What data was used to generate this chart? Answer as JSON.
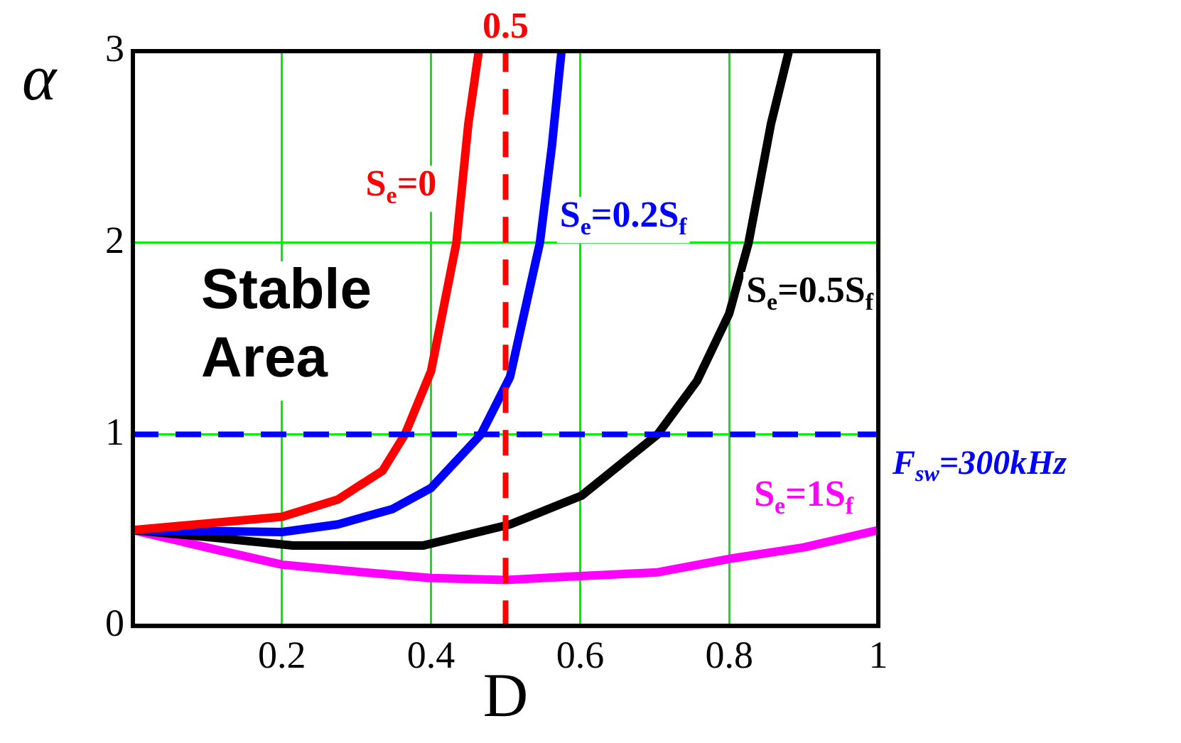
{
  "chart_data": {
    "type": "line",
    "xlabel": "D",
    "ylabel": "α",
    "xlim": [
      0,
      1
    ],
    "xticks": [
      {
        "value": 0,
        "label": null
      },
      0.2,
      0.4,
      0.6,
      0.8,
      1
    ],
    "ylim": [
      0,
      3
    ],
    "yticks": [
      0,
      1,
      2,
      3
    ],
    "grid": true,
    "legend": false,
    "marker": "none",
    "line_style": "solid",
    "series": [
      {
        "name": "S$_{e}$=0",
        "color": "#ff0000",
        "x": [
          0,
          0.2,
          0.275,
          0.335,
          0.365,
          0.4,
          0.434,
          0.45,
          0.464
        ],
        "values": [
          0.5,
          0.57,
          0.66,
          0.81,
          1.0,
          1.33,
          2.0,
          2.62,
          3.0
        ]
      },
      {
        "name": "S$_{e}$=0.2S$_{f}$",
        "color": "#0000ff",
        "x": [
          0,
          0.2,
          0.275,
          0.348,
          0.4,
          0.467,
          0.506,
          0.546,
          0.562,
          0.575
        ],
        "values": [
          0.5,
          0.49,
          0.53,
          0.61,
          0.72,
          1.0,
          1.3,
          2.0,
          2.5,
          3.0
        ]
      },
      {
        "name": "S$_{e}$=0.5S$_{f}$",
        "color": "#000000",
        "x": [
          0,
          0.11,
          0.215,
          0.39,
          0.506,
          0.602,
          0.704,
          0.757,
          0.8,
          0.826,
          0.856,
          0.88
        ],
        "values": [
          0.5,
          0.46,
          0.42,
          0.42,
          0.53,
          0.68,
          1.0,
          1.28,
          1.63,
          2.0,
          2.62,
          3.0
        ]
      },
      {
        "name": "S$_{e}$=1S$_{f}$",
        "color": "#ff00ff",
        "x": [
          0,
          0.11,
          0.2,
          0.31,
          0.4,
          0.5,
          0.6,
          0.704,
          0.8,
          0.9,
          1.0
        ],
        "values": [
          0.5,
          0.4,
          0.32,
          0.28,
          0.25,
          0.24,
          0.26,
          0.28,
          0.35,
          0.41,
          0.5
        ]
      }
    ],
    "ref_lines": [
      {
        "axis": "x",
        "value": 0.5,
        "label": "0.5",
        "color": "#ff0000",
        "line_style": "dashed"
      },
      {
        "axis": "y",
        "value": 1,
        "color": "#0000ff",
        "line_style": "dashed"
      }
    ],
    "annotations": [
      "Stable Area",
      "F$_{sw}$=300kHz"
    ]
  }
}
